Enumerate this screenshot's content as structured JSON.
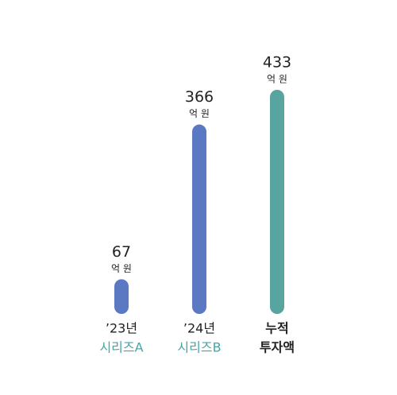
{
  "chart_data": {
    "type": "bar",
    "categories": [
      "’23년",
      "’24년",
      "누적"
    ],
    "subcategories": [
      "시리즈A",
      "시리즈B",
      "투자액"
    ],
    "values": [
      67,
      366,
      433
    ],
    "unit_label": "억 원",
    "colors": [
      "#5b78c2",
      "#5b78c2",
      "#58a5a0"
    ],
    "subcategory_colors": [
      "#45a6a6",
      "#45a6a6",
      "#222222"
    ],
    "label_weights": [
      "normal",
      "normal",
      "bold"
    ]
  }
}
